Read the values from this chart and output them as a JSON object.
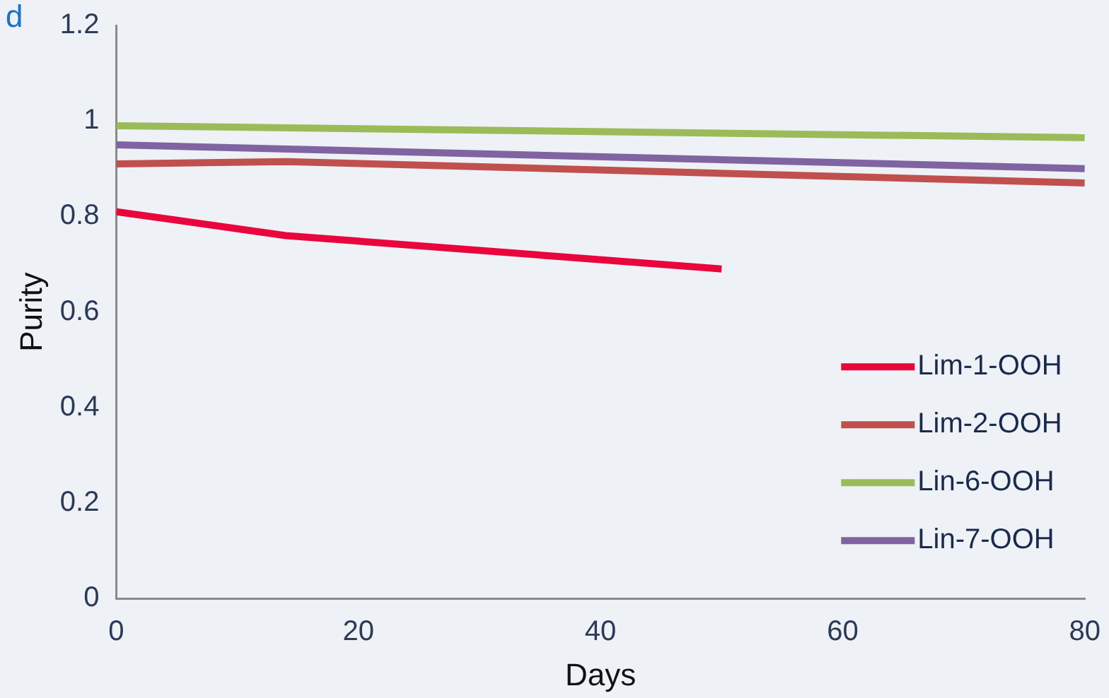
{
  "chart_data": {
    "type": "line",
    "xlabel": "Days",
    "ylabel": "Purity",
    "annotations": [
      "d"
    ],
    "xlim": [
      0,
      80
    ],
    "xticks": [
      0,
      20,
      40,
      60,
      80
    ],
    "ylim": [
      0,
      1.2
    ],
    "yticks": [
      0,
      0.2,
      0.4,
      0.6,
      0.8,
      1,
      1.2
    ],
    "grid": false,
    "legend": "bottom right",
    "marker": "none",
    "line_style": "solid",
    "series": [
      {
        "name": "Lim-1-OOH",
        "color": "#e8063c",
        "x": [
          0,
          14,
          50
        ],
        "values": [
          0.81,
          0.76,
          0.69
        ]
      },
      {
        "name": "Lim-2-OOH",
        "color": "#c0504d",
        "x": [
          0,
          14,
          80
        ],
        "values": [
          0.91,
          0.915,
          0.87
        ]
      },
      {
        "name": "Lin-6-OOH",
        "color": "#9bbb59",
        "x": [
          0,
          80
        ],
        "values": [
          0.99,
          0.965
        ]
      },
      {
        "name": "Lin-7-OOH",
        "color": "#8064a2",
        "x": [
          0,
          80
        ],
        "values": [
          0.95,
          0.9
        ]
      }
    ]
  }
}
